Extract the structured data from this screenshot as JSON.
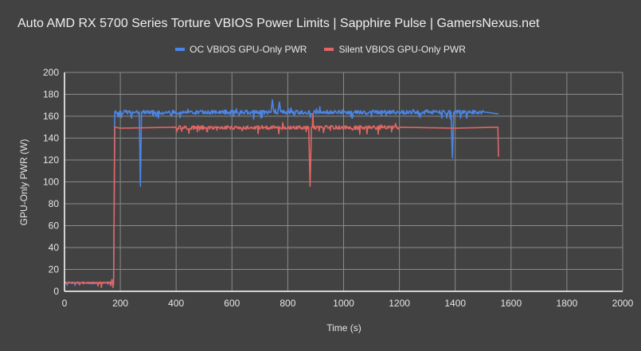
{
  "chart_data": {
    "type": "line",
    "title": "Auto AMD RX 5700 Series Torture VBIOS Power Limits | Sapphire Pulse | GamersNexus.net",
    "xlabel": "Time (s)",
    "ylabel": "GPU-Only PWR (W)",
    "xlim": [
      0,
      2000
    ],
    "ylim": [
      0,
      200
    ],
    "x_ticks": [
      0,
      200,
      400,
      600,
      800,
      1000,
      1200,
      1400,
      1600,
      1800,
      2000
    ],
    "y_ticks": [
      0,
      20,
      40,
      60,
      80,
      100,
      120,
      140,
      160,
      180,
      200
    ],
    "grid": true,
    "legend_position": "top",
    "series": [
      {
        "name": "OC VBIOS GPU-Only PWR",
        "color": "#4a86e8",
        "x": [
          0,
          50,
          100,
          150,
          176,
          180,
          200,
          268,
          272,
          276,
          400,
          600,
          740,
          745,
          750,
          765,
          770,
          775,
          1000,
          1200,
          1385,
          1390,
          1395,
          1500,
          1555
        ],
        "y": [
          8,
          8,
          7,
          8,
          8,
          164,
          164,
          164,
          96,
          164,
          164,
          164,
          164,
          175,
          164,
          164,
          173,
          164,
          164,
          164,
          164,
          122,
          164,
          164,
          162
        ]
      },
      {
        "name": "Silent VBIOS GPU-Only PWR",
        "color": "#e06666",
        "x": [
          0,
          50,
          100,
          150,
          176,
          180,
          200,
          400,
          600,
          875,
          880,
          885,
          888,
          890,
          892,
          1000,
          1200,
          1400,
          1550,
          1553,
          1555
        ],
        "y": [
          8,
          8,
          8,
          8,
          8,
          150,
          149,
          150,
          150,
          150,
          96,
          150,
          150,
          162,
          150,
          150,
          150,
          149,
          150,
          150,
          123
        ]
      }
    ]
  },
  "legend": {
    "items": [
      {
        "label": "OC VBIOS GPU-Only PWR",
        "color": "#4a86e8"
      },
      {
        "label": "Silent VBIOS GPU-Only PWR",
        "color": "#e06666"
      }
    ]
  }
}
